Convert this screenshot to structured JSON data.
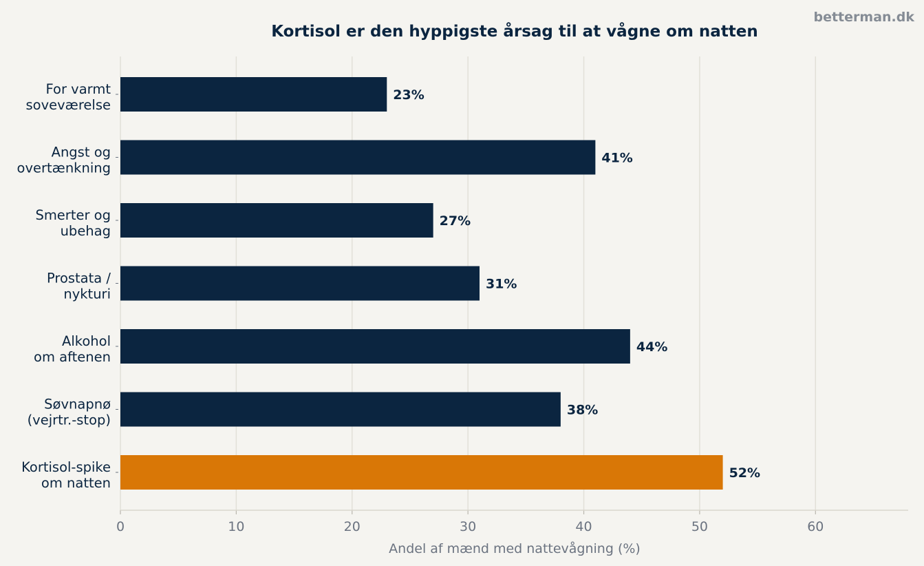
{
  "brand": "betterman.dk",
  "colors": {
    "background": "#f5f4f0",
    "bar": "#0b2540",
    "highlight": "#d97706",
    "grid": "#e2e0d8",
    "text": "#0b2540",
    "muted": "#6b7380"
  },
  "chart_data": {
    "type": "bar",
    "orientation": "horizontal",
    "title": "Kortisol er den hyppigste årsag til at vågne om natten",
    "xlabel": "Andel af mænd med nattevågning (%)",
    "ylabel": "",
    "categories": [
      [
        "For varmt",
        "soveværelse"
      ],
      [
        "Angst og",
        "overtænkning"
      ],
      [
        "Smerter og",
        "ubehag"
      ],
      [
        "Prostata /",
        "nykturi"
      ],
      [
        "Alkohol",
        "om aftenen"
      ],
      [
        "Søvnapnø",
        "(vejrtr.-stop)"
      ],
      [
        "Kortisol-spike",
        "om natten"
      ]
    ],
    "values": [
      23,
      41,
      27,
      31,
      44,
      38,
      52
    ],
    "data_labels": [
      "23%",
      "41%",
      "27%",
      "31%",
      "44%",
      "38%",
      "52%"
    ],
    "highlight_index": 6,
    "xlim": [
      0,
      68
    ],
    "xticks": [
      0,
      10,
      20,
      30,
      40,
      50,
      60
    ],
    "grid": "vertical"
  }
}
